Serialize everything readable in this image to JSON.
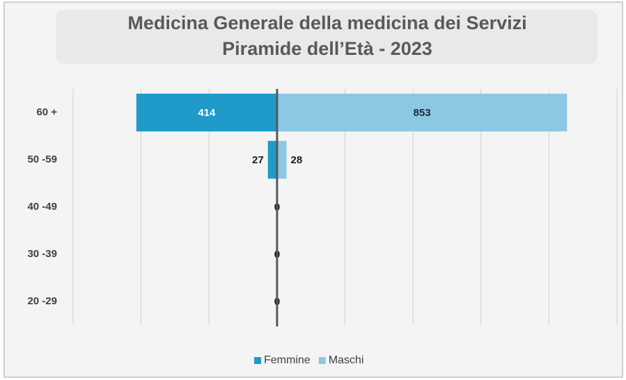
{
  "chart_data": {
    "type": "pyramid",
    "title": "Medicina Generale della medicina dei Servizi",
    "subtitle": "Piramide dell’Età - 2023",
    "categories": [
      "60 +",
      "50 -59",
      "40 -49",
      "30 -39",
      "20 -29"
    ],
    "series": [
      {
        "name": "Femmine",
        "color": "#1f9ac9",
        "side": "left",
        "values": [
          414,
          27,
          0,
          0,
          0
        ]
      },
      {
        "name": "Maschi",
        "color": "#8cc8e3",
        "side": "right",
        "values": [
          853,
          28,
          0,
          0,
          0
        ]
      }
    ],
    "xlim": [
      -600,
      1000
    ],
    "xticks": [
      -600,
      -400,
      -200,
      0,
      200,
      400,
      600,
      800,
      1000
    ],
    "grid": true,
    "legend": "bottom"
  }
}
